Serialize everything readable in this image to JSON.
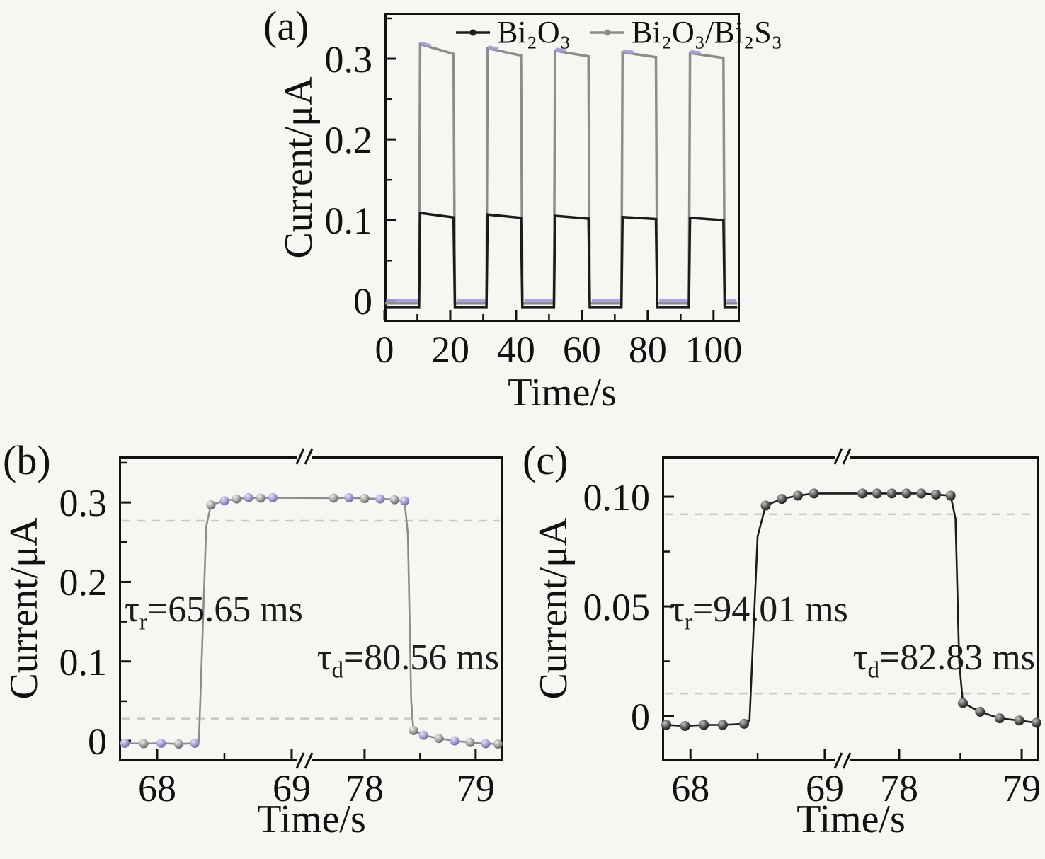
{
  "panels": {
    "a": {
      "tag": "(a)",
      "xlabel": "Time/s",
      "ylabel": "Current/μA",
      "legend": {
        "item1": "Bi₂O₃",
        "item2": "Bi₂O₃/Bi₂S₃"
      }
    },
    "b": {
      "tag": "(b)",
      "xlabel": "Time/s",
      "ylabel": "Current/μA",
      "rise": {
        "sym": "τ",
        "sub": "r",
        "rest": "=65.65 ms"
      },
      "decay": {
        "sym": "τ",
        "sub": "d",
        "rest": "=80.56 ms"
      }
    },
    "c": {
      "tag": "(c)",
      "xlabel": "Time/s",
      "ylabel": "Current/μA",
      "rise": {
        "sym": "τ",
        "sub": "r",
        "rest": "=94.01 ms"
      },
      "decay": {
        "sym": "τ",
        "sub": "d",
        "rest": "=82.83 ms"
      }
    }
  },
  "colors": {
    "bi2o3_line": "#1b1b1b",
    "composite_line": "#8c8c8c",
    "composite_accent": "#a49cd6",
    "dashed_guide": "#c8c8c8",
    "axis": "#111111",
    "background": "#f6f6f2"
  },
  "chart_data": [
    {
      "panel": "a",
      "type": "line",
      "title": "Photocurrent on/off cycles",
      "xlabel": "Time/s",
      "ylabel": "Current/μA",
      "xlim": [
        0,
        108
      ],
      "ylim": [
        -0.026,
        0.357
      ],
      "xticks": [
        0,
        20,
        40,
        60,
        80,
        100
      ],
      "xtick_labels": [
        "0",
        "20",
        "40",
        "60",
        "80",
        "100"
      ],
      "xminor": [
        10,
        30,
        50,
        70,
        90
      ],
      "yticks": [
        0,
        0.1,
        0.2,
        0.3
      ],
      "ytick_labels": [
        "0",
        "0.1",
        "0.2",
        "0.3"
      ],
      "yminor": [
        0.05,
        0.15,
        0.25,
        0.35
      ],
      "x_segments": [
        {
          "t": [
            0,
            108
          ],
          "f": [
            0,
            1
          ]
        }
      ],
      "legend_position": "top-inside",
      "series": [
        {
          "name": "Bi₂O₃/Bi₂S₃",
          "baseline": -0.003,
          "pulses": [
            {
              "on": 10.5,
              "off": 21.0,
              "peak_start": 0.318,
              "peak_end": 0.306
            },
            {
              "on": 31.0,
              "off": 41.5,
              "peak_start": 0.313,
              "peak_end": 0.304
            },
            {
              "on": 51.5,
              "off": 62.0,
              "peak_start": 0.31,
              "peak_end": 0.303
            },
            {
              "on": 72.0,
              "off": 82.5,
              "peak_start": 0.308,
              "peak_end": 0.302
            },
            {
              "on": 92.5,
              "off": 103.0,
              "peak_start": 0.307,
              "peak_end": 0.301
            }
          ]
        },
        {
          "name": "Bi₂O₃",
          "baseline": -0.0075,
          "pulses": [
            {
              "on": 10.5,
              "off": 21.0,
              "peak_start": 0.109,
              "peak_end": 0.1035
            },
            {
              "on": 31.0,
              "off": 41.5,
              "peak_start": 0.107,
              "peak_end": 0.103
            },
            {
              "on": 51.5,
              "off": 62.0,
              "peak_start": 0.1055,
              "peak_end": 0.102
            },
            {
              "on": 72.0,
              "off": 82.5,
              "peak_start": 0.104,
              "peak_end": 0.1015
            },
            {
              "on": 92.5,
              "off": 103.0,
              "peak_start": 0.103,
              "peak_end": 0.1
            }
          ]
        }
      ]
    },
    {
      "panel": "b",
      "type": "line-scatter",
      "series_name": "Bi₂O₃/Bi₂S₃",
      "xlabel": "Time/s",
      "ylabel": "Current/μA",
      "rise_time_ms": 65.65,
      "decay_time_ms": 80.56,
      "ylim": [
        -0.0249,
        0.358
      ],
      "xticks": [
        68,
        69,
        78,
        79
      ],
      "xtick_labels": [
        "68",
        "69",
        "78",
        "79"
      ],
      "xminor": [
        68.5,
        78.5
      ],
      "yticks": [
        0,
        0.1,
        0.2,
        0.3
      ],
      "ytick_labels": [
        "0",
        "0.1",
        "0.2",
        "0.3"
      ],
      "yminor": [
        0.05,
        0.15,
        0.25,
        0.35
      ],
      "x_segments": [
        {
          "t": [
            67.716,
            69.095
          ],
          "f": [
            0,
            0.4834
          ]
        },
        {
          "t": [
            77.459,
            79.243
          ],
          "f": [
            0.4834,
            1
          ]
        }
      ],
      "break_frac": 0.4834,
      "dashed_levels": [
        0.277,
        0.028
      ],
      "marker_style": "alternating-purple-gray",
      "line": [
        [
          67.72,
          -0.003
        ],
        [
          67.76,
          -0.003
        ],
        [
          67.9,
          -0.0035
        ],
        [
          68.03,
          -0.003
        ],
        [
          68.16,
          -0.004
        ],
        [
          68.28,
          -0.003
        ],
        [
          68.31,
          -0.001
        ],
        [
          68.335,
          0.12
        ],
        [
          68.365,
          0.27
        ],
        [
          68.4,
          0.297
        ],
        [
          68.5,
          0.302
        ],
        [
          68.59,
          0.3045
        ],
        [
          68.68,
          0.306
        ],
        [
          68.77,
          0.3055
        ],
        [
          68.86,
          0.306
        ],
        [
          77.72,
          0.3055
        ],
        [
          77.86,
          0.306
        ],
        [
          78.0,
          0.305
        ],
        [
          78.14,
          0.3045
        ],
        [
          78.27,
          0.3035
        ],
        [
          78.36,
          0.302
        ],
        [
          78.39,
          0.26
        ],
        [
          78.42,
          0.05
        ],
        [
          78.44,
          0.013
        ],
        [
          78.53,
          0.007
        ],
        [
          78.67,
          0.003
        ],
        [
          78.81,
          0.0
        ],
        [
          78.95,
          -0.002
        ],
        [
          79.09,
          -0.0035
        ],
        [
          79.2,
          -0.004
        ]
      ],
      "markers": [
        [
          67.76,
          -0.003
        ],
        [
          67.9,
          -0.0035
        ],
        [
          68.03,
          -0.003
        ],
        [
          68.16,
          -0.004
        ],
        [
          68.28,
          -0.003
        ],
        [
          68.4,
          0.297
        ],
        [
          68.5,
          0.302
        ],
        [
          68.59,
          0.3045
        ],
        [
          68.68,
          0.306
        ],
        [
          68.77,
          0.3055
        ],
        [
          68.86,
          0.306
        ],
        [
          77.72,
          0.3055
        ],
        [
          77.86,
          0.306
        ],
        [
          78.0,
          0.305
        ],
        [
          78.14,
          0.3045
        ],
        [
          78.27,
          0.3035
        ],
        [
          78.36,
          0.302
        ],
        [
          78.44,
          0.013
        ],
        [
          78.53,
          0.007
        ],
        [
          78.67,
          0.003
        ],
        [
          78.81,
          0.0
        ],
        [
          78.95,
          -0.002
        ],
        [
          79.09,
          -0.0035
        ],
        [
          79.2,
          -0.004
        ]
      ]
    },
    {
      "panel": "c",
      "type": "line-scatter",
      "series_name": "Bi₂O₃",
      "xlabel": "Time/s",
      "ylabel": "Current/μA",
      "rise_time_ms": 94.01,
      "decay_time_ms": 82.83,
      "ylim": [
        -0.0203,
        0.1184
      ],
      "xticks": [
        68,
        69,
        78,
        79
      ],
      "xtick_labels": [
        "68",
        "69",
        "78",
        "79"
      ],
      "xminor": [
        68.5,
        78.5
      ],
      "yticks": [
        0,
        0.05,
        0.1
      ],
      "ytick_labels": [
        "0",
        "0.05",
        "0.10"
      ],
      "yminor": [
        0.025,
        0.075
      ],
      "x_segments": [
        {
          "t": [
            67.788,
            69.132
          ],
          "f": [
            0,
            0.4784
          ]
        },
        {
          "t": [
            77.538,
            79.144
          ],
          "f": [
            0.4784,
            1
          ]
        }
      ],
      "break_frac": 0.4784,
      "dashed_levels": [
        0.092,
        0.0103
      ],
      "marker_style": "dark-spheres",
      "line": [
        [
          67.79,
          -0.004
        ],
        [
          67.82,
          -0.004
        ],
        [
          67.96,
          -0.0045
        ],
        [
          68.1,
          -0.004
        ],
        [
          68.24,
          -0.004
        ],
        [
          68.4,
          -0.0035
        ],
        [
          68.44,
          -0.002
        ],
        [
          68.47,
          0.04
        ],
        [
          68.5,
          0.082
        ],
        [
          68.56,
          0.096
        ],
        [
          68.68,
          0.099
        ],
        [
          68.8,
          0.1005
        ],
        [
          68.92,
          0.1015
        ],
        [
          77.7,
          0.1015
        ],
        [
          77.82,
          0.1015
        ],
        [
          77.94,
          0.1015
        ],
        [
          78.06,
          0.1015
        ],
        [
          78.18,
          0.1015
        ],
        [
          78.3,
          0.101
        ],
        [
          78.42,
          0.1005
        ],
        [
          78.46,
          0.09
        ],
        [
          78.49,
          0.025
        ],
        [
          78.52,
          0.006
        ],
        [
          78.66,
          0.002
        ],
        [
          78.82,
          -0.001
        ],
        [
          78.98,
          -0.002
        ],
        [
          79.12,
          -0.003
        ]
      ],
      "markers": [
        [
          67.82,
          -0.004
        ],
        [
          67.96,
          -0.0045
        ],
        [
          68.1,
          -0.004
        ],
        [
          68.24,
          -0.004
        ],
        [
          68.4,
          -0.0035
        ],
        [
          68.56,
          0.096
        ],
        [
          68.68,
          0.099
        ],
        [
          68.8,
          0.1005
        ],
        [
          68.92,
          0.1015
        ],
        [
          77.7,
          0.1015
        ],
        [
          77.82,
          0.1015
        ],
        [
          77.94,
          0.1015
        ],
        [
          78.06,
          0.1015
        ],
        [
          78.18,
          0.1015
        ],
        [
          78.3,
          0.101
        ],
        [
          78.42,
          0.1005
        ],
        [
          78.52,
          0.006
        ],
        [
          78.66,
          0.002
        ],
        [
          78.82,
          -0.001
        ],
        [
          78.98,
          -0.002
        ],
        [
          79.12,
          -0.003
        ]
      ]
    }
  ]
}
